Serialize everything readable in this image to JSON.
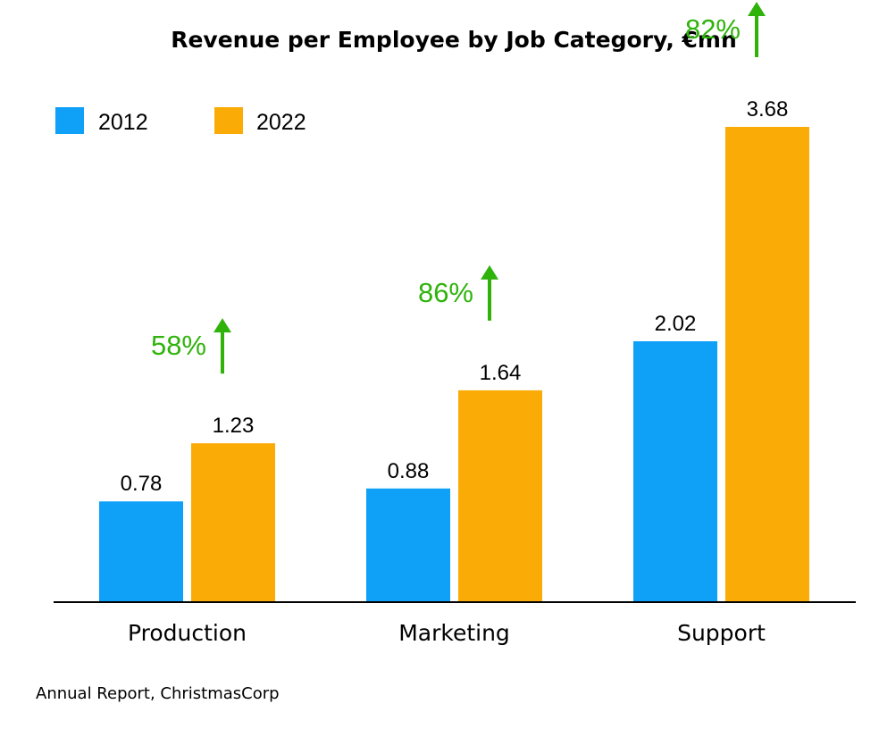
{
  "chart_data": {
    "type": "bar",
    "title": "Revenue per Employee by Job Category, €mn",
    "categories": [
      "Production",
      "Marketing",
      "Support"
    ],
    "series": [
      {
        "name": "2012",
        "values": [
          0.78,
          0.88,
          2.02
        ],
        "color": "#0fa0f8"
      },
      {
        "name": "2022",
        "values": [
          1.23,
          1.64,
          3.68
        ],
        "color": "#fbab05"
      }
    ],
    "value_labels": [
      [
        "0.78",
        "0.88",
        "2.02"
      ],
      [
        "1.23",
        "1.64",
        "3.68"
      ]
    ],
    "growth_annotations": [
      "58%",
      "86%",
      "82%"
    ],
    "growth_color": "#2fb30b",
    "legend_placement": "top-left",
    "grid": false,
    "ylim": [
      0,
      3.68
    ]
  },
  "source": "Annual Report, ChristmasCorp"
}
